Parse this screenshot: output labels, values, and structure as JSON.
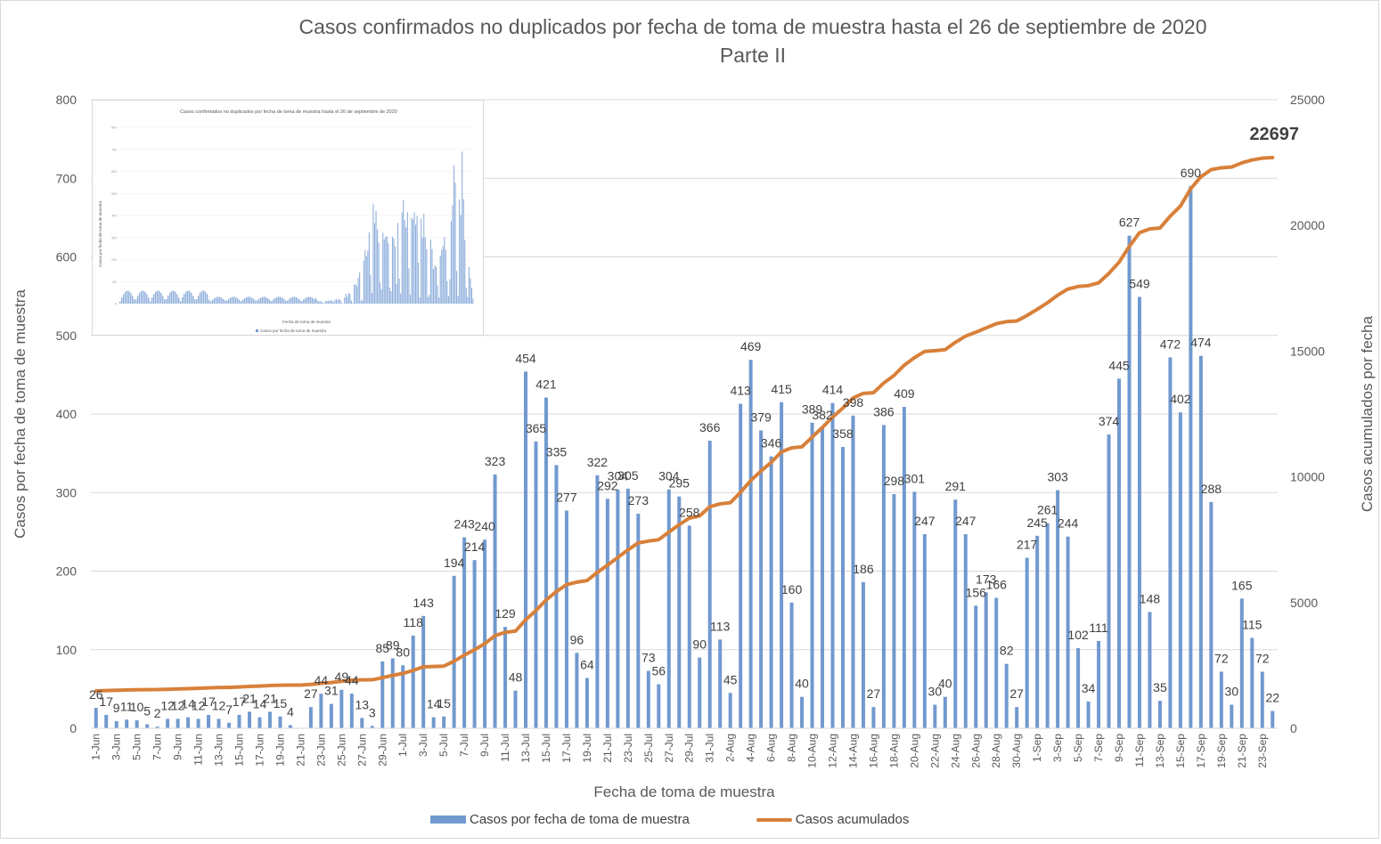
{
  "chart_data": {
    "type": "bar",
    "title": "Casos confirmados no duplicados por fecha de toma de muestra hasta el 26 de septiembre de 2020",
    "subtitle": "Parte II",
    "xlabel": "Fecha de toma de muestra",
    "ylabel": "Casos por fecha de toma de muestra",
    "y2label": "Casos acumulados por fecha",
    "ylim": [
      0,
      800
    ],
    "y2lim": [
      0,
      25000
    ],
    "yticks": [
      "0",
      "100",
      "200",
      "300",
      "400",
      "500",
      "600",
      "700",
      "800"
    ],
    "y2ticks": [
      "0",
      "5000",
      "10000",
      "15000",
      "20000",
      "25000"
    ],
    "grid": true,
    "legend_position": "bottom",
    "cumulative_start": 1459,
    "final_cumulative_label": "22697",
    "categories": [
      "1-Jun",
      "2-Jun",
      "3-Jun",
      "4-Jun",
      "5-Jun",
      "6-Jun",
      "7-Jun",
      "8-Jun",
      "9-Jun",
      "10-Jun",
      "11-Jun",
      "12-Jun",
      "13-Jun",
      "14-Jun",
      "15-Jun",
      "16-Jun",
      "17-Jun",
      "18-Jun",
      "19-Jun",
      "20-Jun",
      "21-Jun",
      "22-Jun",
      "23-Jun",
      "24-Jun",
      "25-Jun",
      "26-Jun",
      "27-Jun",
      "28-Jun",
      "29-Jun",
      "30-Jun",
      "1-Jul",
      "2-Jul",
      "3-Jul",
      "4-Jul",
      "5-Jul",
      "6-Jul",
      "7-Jul",
      "8-Jul",
      "9-Jul",
      "10-Jul",
      "11-Jul",
      "12-Jul",
      "13-Jul",
      "14-Jul",
      "15-Jul",
      "16-Jul",
      "17-Jul",
      "18-Jul",
      "19-Jul",
      "20-Jul",
      "21-Jul",
      "22-Jul",
      "23-Jul",
      "24-Jul",
      "25-Jul",
      "26-Jul",
      "27-Jul",
      "28-Jul",
      "29-Jul",
      "30-Jul",
      "31-Jul",
      "1-Aug",
      "2-Aug",
      "3-Aug",
      "4-Aug",
      "5-Aug",
      "6-Aug",
      "7-Aug",
      "8-Aug",
      "9-Aug",
      "10-Aug",
      "11-Aug",
      "12-Aug",
      "13-Aug",
      "14-Aug",
      "15-Aug",
      "16-Aug",
      "17-Aug",
      "18-Aug",
      "19-Aug",
      "20-Aug",
      "21-Aug",
      "22-Aug",
      "23-Aug",
      "24-Aug",
      "25-Aug",
      "26-Aug",
      "27-Aug",
      "28-Aug",
      "29-Aug",
      "30-Aug",
      "31-Aug",
      "1-Sep",
      "2-Sep",
      "3-Sep",
      "4-Sep",
      "5-Sep",
      "6-Sep",
      "7-Sep",
      "8-Sep",
      "9-Sep",
      "10-Sep",
      "11-Sep",
      "12-Sep",
      "13-Sep",
      "14-Sep",
      "15-Sep",
      "16-Sep",
      "17-Sep",
      "18-Sep",
      "19-Sep",
      "20-Sep",
      "21-Sep",
      "22-Sep",
      "23-Sep",
      "24-Sep"
    ],
    "series": [
      {
        "name": "Casos por fecha de toma de muestra",
        "type": "bar",
        "color": "#7199cf",
        "values": [
          26,
          17,
          9,
          11,
          10,
          5,
          2,
          12,
          12,
          14,
          12,
          17,
          12,
          7,
          17,
          21,
          14,
          21,
          15,
          4,
          0,
          27,
          44,
          31,
          49,
          44,
          13,
          3,
          85,
          89,
          80,
          118,
          143,
          14,
          15,
          194,
          243,
          214,
          240,
          323,
          129,
          48,
          454,
          365,
          421,
          335,
          277,
          96,
          64,
          322,
          292,
          304,
          305,
          273,
          73,
          56,
          304,
          295,
          258,
          90,
          366,
          113,
          45,
          413,
          469,
          379,
          346,
          415,
          160,
          40,
          389,
          382,
          414,
          358,
          398,
          186,
          27,
          386,
          298,
          409,
          301,
          247,
          30,
          40,
          291,
          247,
          156,
          173,
          166,
          82,
          27,
          217,
          245,
          261,
          303,
          244,
          102,
          34,
          111,
          374,
          445,
          627,
          549,
          148,
          35,
          472,
          402,
          690,
          474,
          288,
          72,
          30,
          165,
          115,
          72,
          22
        ]
      },
      {
        "name": "Casos acumulados",
        "type": "line",
        "axis": "right",
        "color": "#d8803a",
        "derived_from": "running total of daily cases starting at cumulative_start"
      }
    ],
    "inset": {
      "title": "Casos confirmados no duplicados por fecha de toma de muestra hasta el 26 de septiembre de 2020",
      "xlabel": "Fecha de toma de muestra",
      "ylabel": "Casos por fecha de toma de muestra",
      "legend": "Casos por fecha de toma de muestra",
      "yticks": [
        "0",
        "100",
        "200",
        "300",
        "400",
        "500",
        "600",
        "700",
        "800"
      ]
    }
  },
  "legend": {
    "bar_label": "Casos por fecha de toma de muestra",
    "line_label": "Casos acumulados"
  }
}
